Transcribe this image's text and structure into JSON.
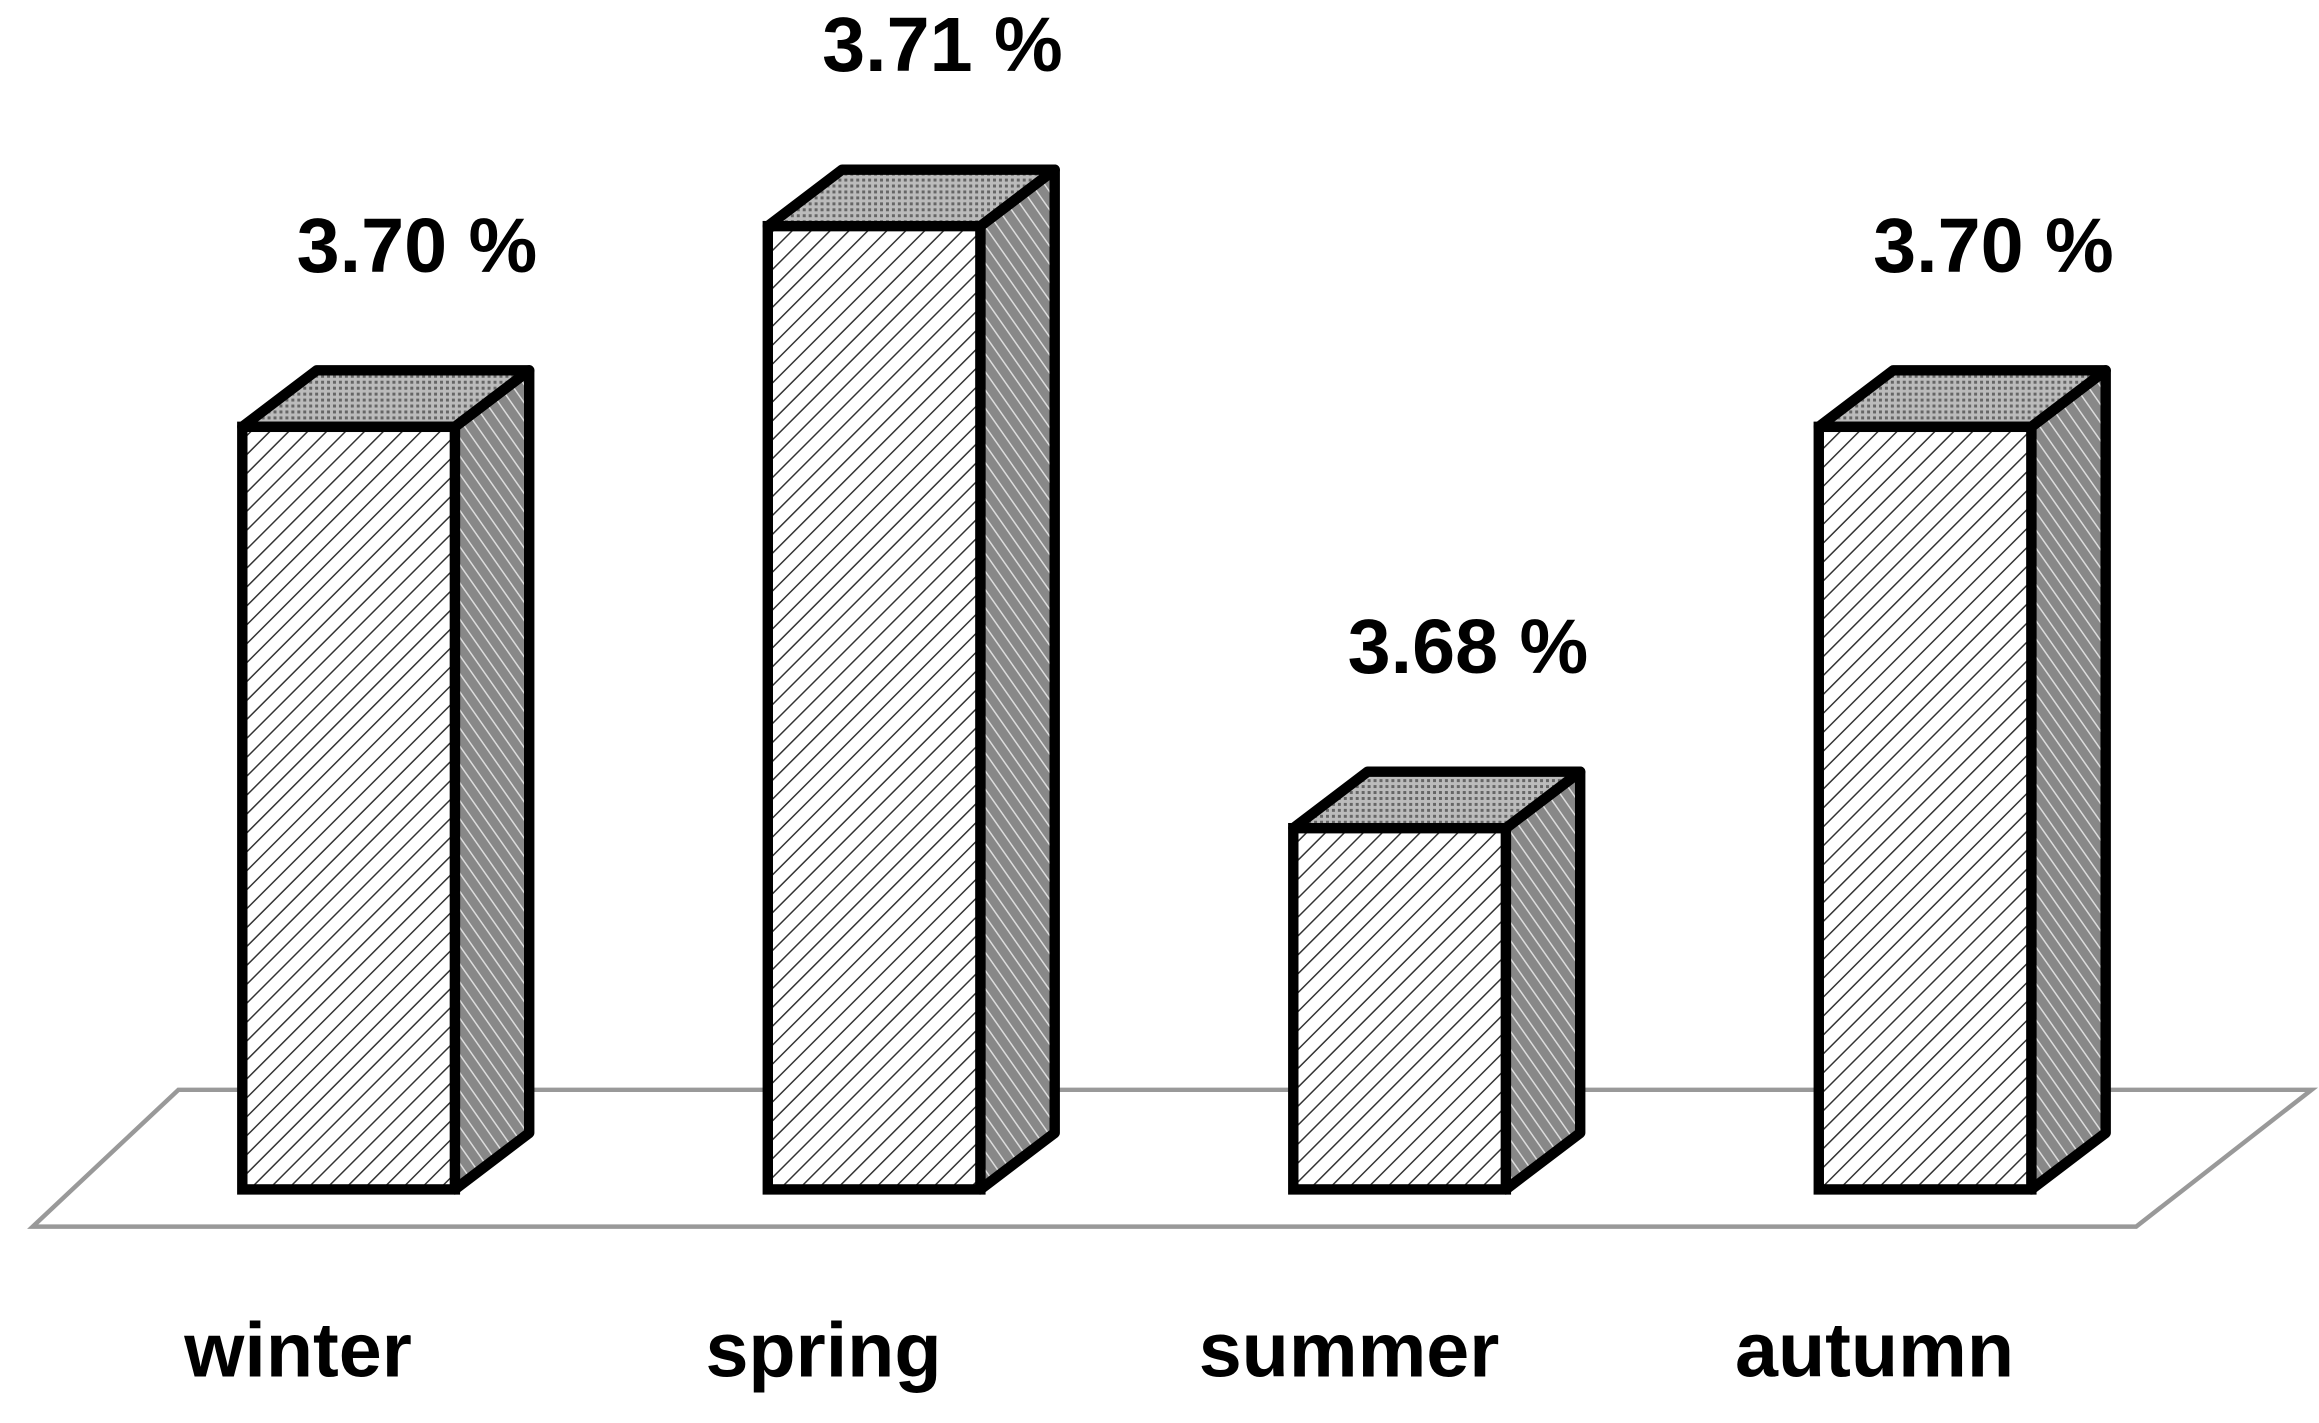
{
  "chart_data": {
    "type": "bar3d",
    "categories": [
      "winter",
      "spring",
      "summer",
      "autumn"
    ],
    "values": [
      3.7,
      3.71,
      3.68,
      3.7
    ],
    "value_labels": [
      "3.70 %",
      "3.71 %",
      "3.68 %",
      "3.70 %"
    ]
  }
}
